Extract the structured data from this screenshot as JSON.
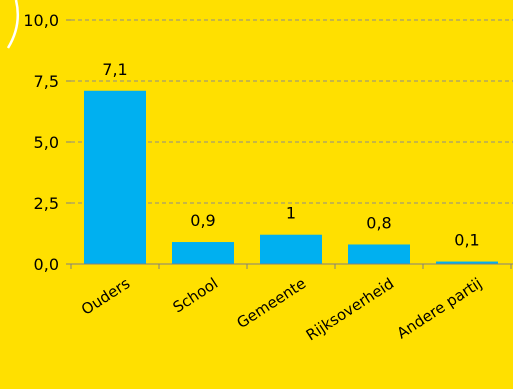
{
  "colors": {
    "background": "#FFE000",
    "bar": "#00B0F0",
    "grid": "#8C8C8C",
    "axis": "#808080",
    "text": "#000000",
    "decor_arc": "#FFFFFF"
  },
  "chart_data": {
    "type": "bar",
    "title": "",
    "xlabel": "",
    "ylabel": "",
    "categories": [
      "Ouders",
      "School",
      "Gemeente",
      "Rijksoverheid",
      "Andere partij"
    ],
    "values": [
      7.1,
      0.9,
      1.2,
      0.8,
      0.1
    ],
    "data_labels": [
      "7,1",
      "0,9",
      "1",
      "0,8",
      "0,1"
    ],
    "ylim": [
      0,
      10
    ],
    "yticks": [
      0,
      2.5,
      5.0,
      7.5,
      10.0
    ],
    "ytick_labels": [
      "0,0",
      "2,5",
      "5,0",
      "7,5",
      "10,0"
    ],
    "grid": true,
    "grid_style": "dashed",
    "legend": "none"
  }
}
